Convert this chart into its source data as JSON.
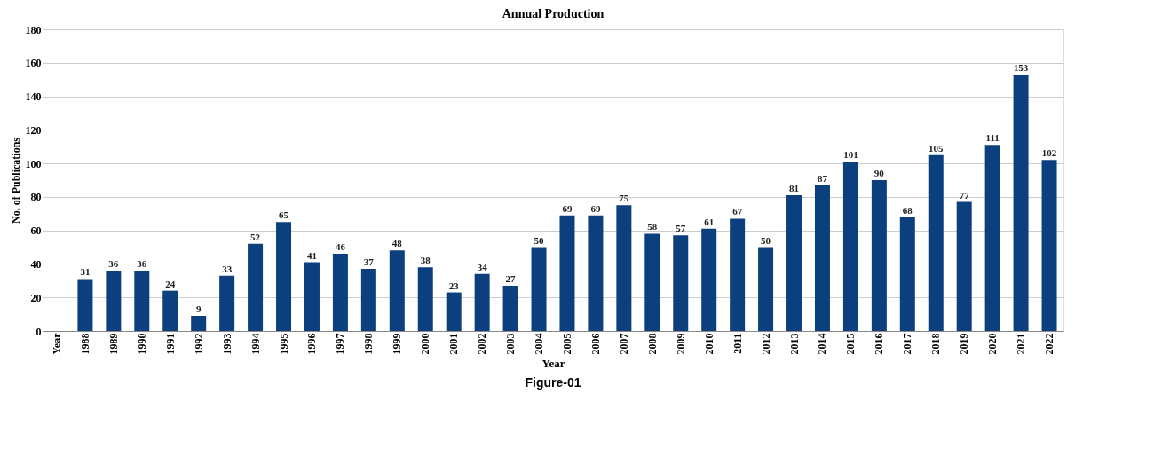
{
  "chart_data": {
    "type": "bar",
    "title": "Annual Production",
    "xlabel": "Year",
    "ylabel": "No. of Publications",
    "categories": [
      "Year",
      "1988",
      "1989",
      "1990",
      "1991",
      "1992",
      "1993",
      "1994",
      "1995",
      "1996",
      "1997",
      "1998",
      "1999",
      "2000",
      "2001",
      "2002",
      "2003",
      "2004",
      "2005",
      "2006",
      "2007",
      "2008",
      "2009",
      "2010",
      "2011",
      "2012",
      "2013",
      "2014",
      "2015",
      "2016",
      "2017",
      "2018",
      "2019",
      "2020",
      "2021",
      "2022"
    ],
    "values": [
      null,
      31,
      36,
      36,
      24,
      9,
      33,
      52,
      65,
      41,
      46,
      37,
      48,
      38,
      23,
      34,
      27,
      50,
      69,
      69,
      75,
      58,
      57,
      61,
      67,
      50,
      81,
      87,
      101,
      90,
      68,
      105,
      77,
      111,
      153,
      102
    ],
    "color": "#0b3f7e",
    "ylim": [
      0,
      180
    ],
    "yticks": [
      0,
      20,
      40,
      60,
      80,
      100,
      120,
      140,
      160,
      180
    ],
    "grid": "y",
    "data_labels": true,
    "annotations": [
      "Figure-01"
    ]
  }
}
